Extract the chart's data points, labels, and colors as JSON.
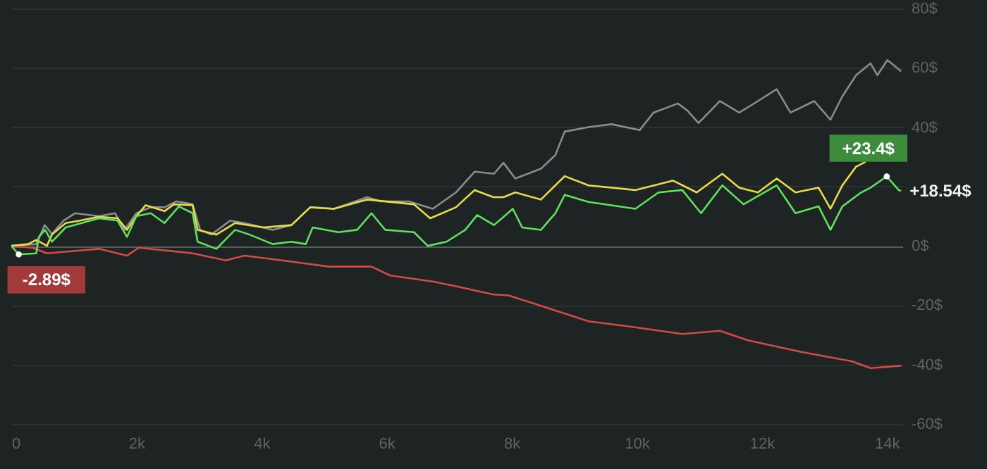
{
  "chart_data": {
    "type": "line",
    "xlim": [
      0,
      14250
    ],
    "ylim": [
      -60,
      80
    ],
    "xticks": [
      {
        "value": 0,
        "label": "0"
      },
      {
        "value": 2000,
        "label": "2k"
      },
      {
        "value": 4000,
        "label": "4k"
      },
      {
        "value": 6000,
        "label": "6k"
      },
      {
        "value": 8000,
        "label": "8k"
      },
      {
        "value": 10000,
        "label": "10k"
      },
      {
        "value": 12000,
        "label": "12k"
      },
      {
        "value": 14000,
        "label": "14k"
      }
    ],
    "yticks": [
      {
        "value": -60,
        "label": "-60$"
      },
      {
        "value": -40,
        "label": "-40$"
      },
      {
        "value": -20,
        "label": "-20$"
      },
      {
        "value": 0,
        "label": "0$"
      },
      {
        "value": 20,
        "label": null
      },
      {
        "value": 40,
        "label": "40$"
      },
      {
        "value": 60,
        "label": "60$"
      },
      {
        "value": 80,
        "label": "80$"
      }
    ],
    "grid": "y",
    "marker": "none",
    "line_style": "solid",
    "series": [
      {
        "color": "#8c8c8c",
        "x": [
          0,
          400,
          535,
          650,
          835,
          1020,
          1400,
          1660,
          1810,
          2000,
          2230,
          2450,
          2640,
          2900,
          3020,
          3200,
          3500,
          3730,
          4180,
          4480,
          4780,
          5160,
          5690,
          5910,
          6360,
          6740,
          7110,
          7410,
          7720,
          7870,
          8060,
          8470,
          8700,
          8850,
          9230,
          9600,
          10050,
          10270,
          10660,
          10810,
          10990,
          11330,
          11640,
          11940,
          12240,
          12460,
          12840,
          13100,
          13290,
          13510,
          13740,
          13850,
          14010,
          14120,
          14230
        ],
        "values": [
          0,
          0.6,
          7,
          4,
          8.5,
          11,
          10,
          11,
          5.4,
          11,
          13,
          13,
          15,
          14,
          5.4,
          3.8,
          8.5,
          7.7,
          5.4,
          7,
          13,
          12.5,
          16.4,
          15,
          15,
          12.5,
          18,
          25,
          24.3,
          28,
          22.7,
          26,
          30.6,
          38.5,
          40,
          41,
          39,
          44.9,
          48,
          45.6,
          41.4,
          48.8,
          44.9,
          48.8,
          52.8,
          44.9,
          48.8,
          42.5,
          50.4,
          57.5,
          61.5,
          57.5,
          62.6,
          60.7,
          58.8
        ]
      },
      {
        "color": "#d34a4a",
        "x": [
          0,
          340,
          570,
          1400,
          1850,
          2040,
          2900,
          3430,
          3730,
          4330,
          5080,
          5760,
          6060,
          6740,
          7110,
          7710,
          7950,
          8470,
          9230,
          9830,
          10730,
          11330,
          11780,
          12620,
          13440,
          13740,
          14230
        ],
        "values": [
          0,
          -0.6,
          -2.5,
          -1,
          -3.3,
          -0.6,
          -2.5,
          -4.9,
          -3.3,
          -4.9,
          -7,
          -7,
          -10,
          -12,
          -13.6,
          -16.4,
          -16.7,
          -20.2,
          -25.4,
          -27,
          -29.7,
          -28.6,
          -31.8,
          -35.7,
          -38.9,
          -41.2,
          -40.4
        ]
      },
      {
        "color": "#e8dc4c",
        "x": [
          0,
          270,
          400,
          570,
          650,
          870,
          1100,
          1400,
          1700,
          1850,
          2000,
          2150,
          2450,
          2600,
          2900,
          2980,
          3280,
          3580,
          4030,
          4480,
          4780,
          5160,
          5690,
          6440,
          6700,
          7110,
          7410,
          7710,
          7870,
          8060,
          8470,
          8850,
          9230,
          9980,
          10580,
          10960,
          11370,
          11640,
          11940,
          12240,
          12540,
          12910,
          13100,
          13290,
          13510,
          13660
        ],
        "values": [
          0,
          0.6,
          2,
          0,
          3.8,
          7.7,
          8.5,
          9.8,
          9.3,
          5.4,
          10,
          13.7,
          11.7,
          14,
          13.7,
          5.4,
          3.8,
          7.7,
          6.2,
          7,
          13,
          12.5,
          15.6,
          14,
          9.3,
          13,
          18.8,
          16.4,
          16.4,
          18,
          15.6,
          23.5,
          20.4,
          18.8,
          22,
          18,
          24.3,
          19.6,
          18,
          22.7,
          18,
          19.6,
          12.5,
          20.4,
          26.7,
          28.3
        ]
      },
      {
        "color": "#5fe05f",
        "x": [
          0,
          120,
          400,
          440,
          540,
          650,
          870,
          1400,
          1700,
          1850,
          2000,
          2230,
          2450,
          2680,
          2900,
          2980,
          3280,
          3580,
          3810,
          4180,
          4480,
          4710,
          4820,
          5230,
          5530,
          5760,
          5980,
          6440,
          6660,
          6960,
          7260,
          7450,
          7720,
          8020,
          8170,
          8470,
          8700,
          8850,
          9230,
          9980,
          10350,
          10730,
          11030,
          11370,
          11710,
          12240,
          12540,
          12910,
          13100,
          13290,
          13590,
          13740,
          14000,
          14190,
          14230
        ],
        "values": [
          0,
          -2.89,
          -2.5,
          3,
          5.4,
          1.4,
          6.2,
          9.3,
          8.5,
          3,
          10,
          11,
          7.7,
          13.3,
          11,
          1.4,
          -1,
          5.4,
          3.8,
          0.6,
          1.4,
          0.6,
          6.2,
          4.6,
          5.4,
          11,
          5.4,
          4.6,
          0,
          1.4,
          5.4,
          10.4,
          7,
          12.5,
          6.2,
          5.4,
          11,
          17.2,
          14.8,
          12.5,
          18,
          18.8,
          11,
          20.4,
          14,
          20.4,
          11,
          13.3,
          5.4,
          13.3,
          18,
          19.6,
          23.4,
          18.8,
          18.54
        ]
      }
    ],
    "annotations": [
      {
        "text": "-2.89$",
        "x": 120,
        "y": -2.89
      },
      {
        "text": "+23.4$",
        "x": 14000,
        "y": 23.4
      },
      {
        "text": "+18.54$",
        "x": 14230,
        "y": 18.54
      }
    ]
  }
}
